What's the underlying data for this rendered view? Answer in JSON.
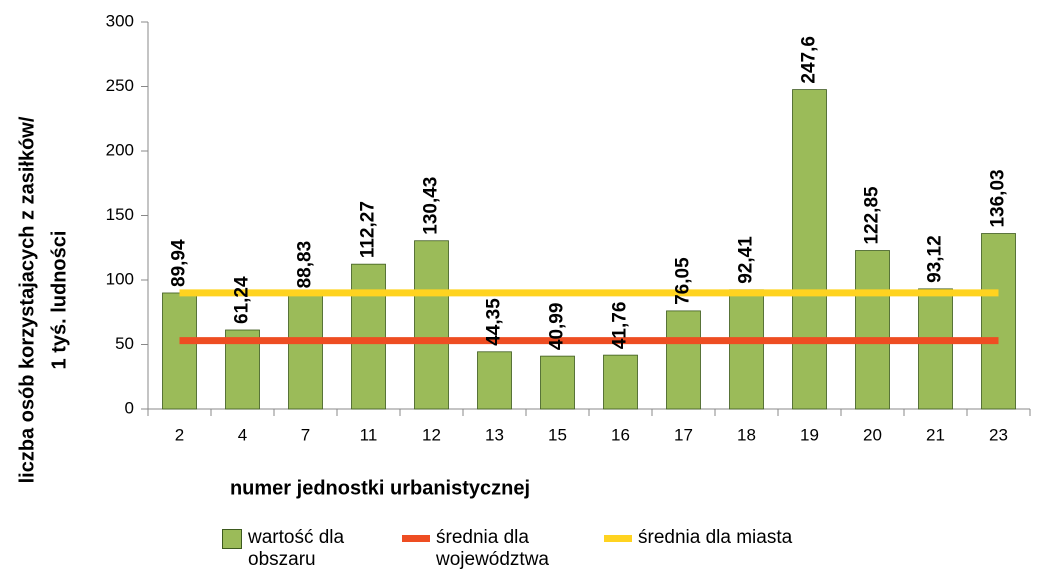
{
  "chart_data": {
    "type": "bar",
    "categories": [
      "2",
      "4",
      "7",
      "11",
      "12",
      "13",
      "15",
      "16",
      "17",
      "18",
      "19",
      "20",
      "21",
      "23"
    ],
    "series": [
      {
        "name": "wartość dla obszaru",
        "type": "bar",
        "color": "#9bbb59",
        "values": [
          89.94,
          61.24,
          88.83,
          112.27,
          130.43,
          44.35,
          40.99,
          41.76,
          76.05,
          92.41,
          247.6,
          122.85,
          93.12,
          136.03
        ],
        "value_labels": [
          "89,94",
          "61,24",
          "88,83",
          "112,27",
          "130,43",
          "44,35",
          "40,99",
          "41,76",
          "76,05",
          "92,41",
          "247,6",
          "122,85",
          "93,12",
          "136,03"
        ]
      },
      {
        "name": "średnia dla województwa",
        "type": "line",
        "color": "#ee4d22",
        "values": [
          53,
          53,
          53,
          53,
          53,
          53,
          53,
          53,
          53,
          53,
          53,
          53,
          53,
          53
        ]
      },
      {
        "name": "średnia dla miasta",
        "type": "line",
        "color": "#ffd320",
        "values": [
          90,
          90,
          90,
          90,
          90,
          90,
          90,
          90,
          90,
          90,
          90,
          90,
          90,
          90
        ]
      }
    ],
    "xlabel": "numer jednostki urbanistycznej",
    "ylabel": [
      "liczba osób korzystajacych z zasiłków/",
      "1 tyś. ludności"
    ],
    "ylim": [
      0,
      300
    ],
    "yticks": [
      0,
      50,
      100,
      150,
      200,
      250,
      300
    ],
    "grid": false
  }
}
